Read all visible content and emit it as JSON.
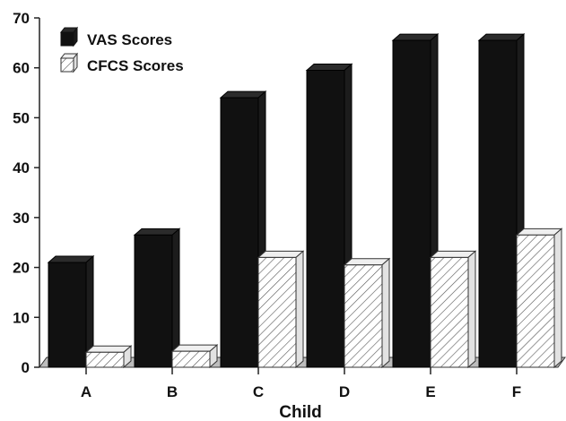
{
  "chart_data": {
    "type": "bar",
    "title": "",
    "xlabel": "Child",
    "ylabel": "",
    "categories": [
      "A",
      "B",
      "C",
      "D",
      "E",
      "F"
    ],
    "ylim": [
      0,
      70
    ],
    "yticks": [
      0,
      10,
      20,
      30,
      40,
      50,
      60,
      70
    ],
    "series": [
      {
        "name": "VAS Scores",
        "values": [
          21,
          26.5,
          54,
          59.5,
          65.5,
          65.5
        ],
        "color": "#111111",
        "fill": "solid"
      },
      {
        "name": "CFCS Scores",
        "values": [
          3,
          3.2,
          22,
          20.5,
          22,
          26.5
        ],
        "color": "#ffffff",
        "fill": "diagonal-hatch"
      }
    ],
    "style": "3d-bar",
    "legend_position": "top-left",
    "grid": false
  }
}
